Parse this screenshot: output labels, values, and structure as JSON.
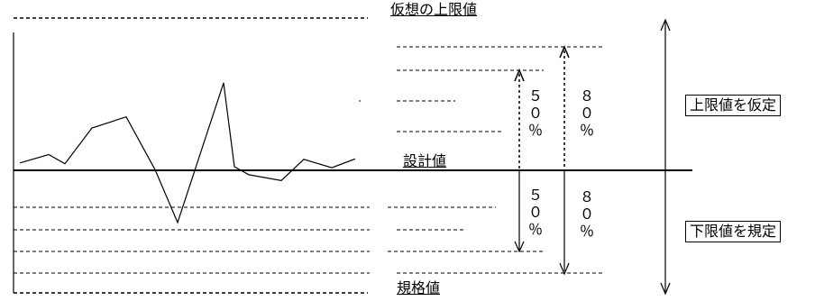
{
  "labels": {
    "virtual_upper_limit": "仮想の上限値",
    "design_value": "設計値",
    "standard_value": "規格値",
    "assume_upper_limit": "上限値を仮定",
    "specify_lower_limit": "下限値を規定",
    "upper_50": "５０％",
    "upper_80": "８０％",
    "lower_50": "５０％",
    "lower_80": "８０％"
  },
  "data_series": {
    "name": "",
    "values": [
      0.45,
      0.96,
      0.4,
      2.58,
      3.26,
      0.04,
      -3.18,
      5.33,
      0.22,
      -0.27,
      -0.62,
      0.67,
      0.16,
      0.7
    ]
  },
  "colors": {
    "line": "#000000",
    "background": "#ffffff"
  }
}
